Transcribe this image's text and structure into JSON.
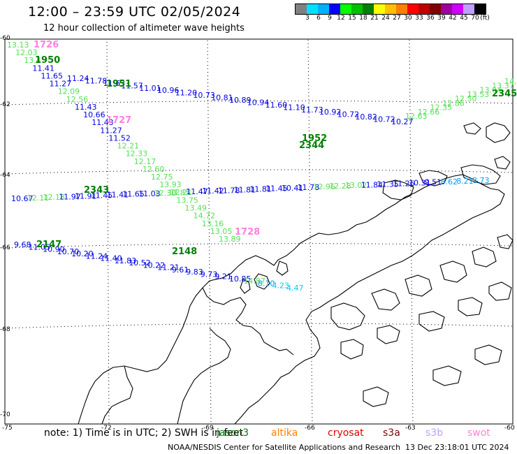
{
  "header": {
    "title": "12:00 – 23:59 UTC 02/05/2024",
    "subtitle": "12 hour collection of altimeter wave heights"
  },
  "colorbar": {
    "unit": "(ft)",
    "colors": [
      "#808080",
      "#00e0ff",
      "#00b0ff",
      "#0000ff",
      "#00ff00",
      "#00c000",
      "#008000",
      "#ffff00",
      "#ffc000",
      "#ff8000",
      "#ff0000",
      "#c00000",
      "#800000",
      "#a000a0",
      "#d000ff",
      "#c0a0ff",
      "#000000"
    ],
    "labels": [
      "3",
      "6",
      "9",
      "12",
      "15",
      "18",
      "21",
      "24",
      "27",
      "30",
      "33",
      "36",
      "39",
      "42",
      "45",
      "70"
    ]
  },
  "axes": {
    "lat_labels": [
      "-60",
      "-62",
      "-64",
      "-66",
      "-68",
      "-70"
    ],
    "lon_labels": [
      "-75",
      "-72",
      "-69",
      "-66",
      "-63",
      "-60"
    ]
  },
  "track_times": [
    {
      "text": "1726",
      "color": "#ff80e0"
    },
    {
      "text": "1950",
      "color": "#008000"
    },
    {
      "text": "1951",
      "color": "#008000"
    },
    {
      "text": "1727",
      "color": "#ff80e0"
    },
    {
      "text": "1728",
      "color": "#ff80e0"
    },
    {
      "text": "2343",
      "color": "#008000"
    },
    {
      "text": "2344",
      "color": "#008000"
    },
    {
      "text": "2345",
      "color": "#008000"
    },
    {
      "text": "2147",
      "color": "#008000"
    },
    {
      "text": "2148",
      "color": "#008000"
    },
    {
      "text": "1952",
      "color": "#008000"
    }
  ],
  "wave_heights": {
    "track_1726": [
      "13.13",
      "12.03",
      "13.4",
      "11.41",
      "11.65",
      "11.27",
      "12.09",
      "12.56",
      "11.43",
      "10.66",
      "11.43",
      "11.27",
      "11.52",
      "12.21",
      "12.33",
      "12.17",
      "12.60",
      "12.75",
      "13.93",
      "13.85",
      "13.75",
      "13.49",
      "14.72",
      "13.16",
      "13.05",
      "13.89"
    ],
    "track_1950": [
      "11.24",
      "11.78",
      "11.63",
      "11.57",
      "11.01",
      "10.96",
      "11.20",
      "10.73",
      "10.81",
      "10.89",
      "10.94",
      "11.60",
      "11.10",
      "11.73",
      "10.92",
      "10.72",
      "10.82",
      "10.72",
      "10.27"
    ],
    "track_2343": [
      "10.67",
      "12.11",
      "12.18",
      "11.97",
      "11.91",
      "11.45",
      "11.41",
      "11.65",
      "11.03",
      "12.30",
      "12.21",
      "11.47",
      "11.42",
      "11.78",
      "11.81",
      "11.81",
      "11.45",
      "10.41",
      "11.78",
      "12.96",
      "12.28",
      "13.02",
      "11.84",
      "11.35",
      "11.26",
      "10.31",
      "9.51",
      "8.62",
      "8.21",
      "8.73"
    ],
    "track_2345": [
      "12.63",
      "12.66",
      "12.35",
      "12.86",
      "12.50",
      "13.53",
      "13.04",
      "13.37",
      "14.30"
    ],
    "track_2147": [
      "9.68",
      "11.05",
      "10.90",
      "10.70",
      "10.20",
      "11.24",
      "11.40",
      "11.83",
      "10.52",
      "10.22",
      "11.21",
      "9.61",
      "9.83",
      "9.73",
      "9.21",
      "10.85",
      "14.87",
      "8.10",
      "4.23",
      "4.47"
    ]
  },
  "footer": {
    "note_prefix": "note:  1) Time is in UTC; 2) SWH is in feet",
    "satellites": [
      {
        "name": "jason3",
        "color": "#008000"
      },
      {
        "name": "altika",
        "color": "#ff8000"
      },
      {
        "name": "cryosat",
        "color": "#e00000"
      },
      {
        "name": "s3a",
        "color": "#800000"
      },
      {
        "name": "s3b",
        "color": "#c0a0ff"
      },
      {
        "name": "swot",
        "color": "#ff80e0"
      }
    ],
    "credit": "NOAA/NESDIS Center for Satellite Applications and Research",
    "timestamp": "13 Dec 23:18:01 UTC 2024"
  }
}
